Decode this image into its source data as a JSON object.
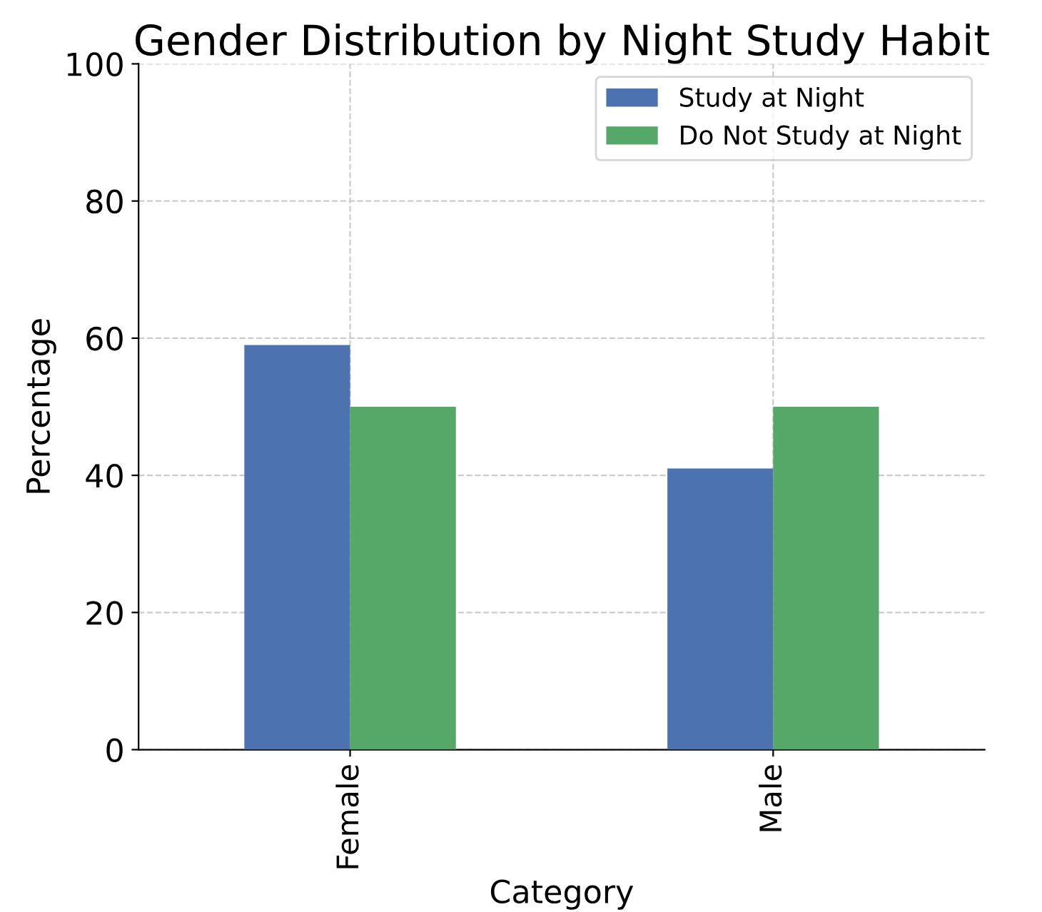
{
  "chart_data": {
    "type": "bar",
    "title": "Gender Distribution by Night Study Habit",
    "xlabel": "Category",
    "ylabel": "Percentage",
    "categories": [
      "Female",
      "Male"
    ],
    "series": [
      {
        "name": "Study at Night",
        "color": "#4c72b0",
        "values": [
          59,
          41
        ]
      },
      {
        "name": "Do Not Study at Night",
        "color": "#55a868",
        "values": [
          50,
          50
        ]
      }
    ],
    "ylim": [
      0,
      100
    ],
    "yticks": [
      0,
      20,
      40,
      60,
      80,
      100
    ],
    "grid": true,
    "legend": "top right"
  }
}
